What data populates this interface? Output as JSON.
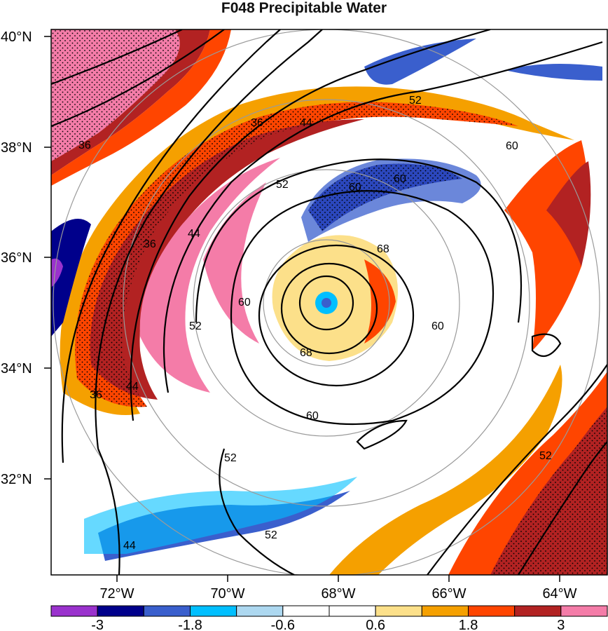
{
  "title": "F048 Precipitable Water",
  "map": {
    "lat_ticks": [
      "40°N",
      "38°N",
      "36°N",
      "34°N",
      "32°N"
    ],
    "lon_ticks": [
      "72°W",
      "70°W",
      "68°W",
      "66°W",
      "64°W"
    ]
  },
  "colorbar": {
    "colors": [
      "#9a32cd",
      "#00008b",
      "#3a5fcd",
      "#00bfff",
      "#add8f0",
      "#ffffff",
      "#ffffff",
      "#fce08a",
      "#f5a000",
      "#ff4500",
      "#b22222",
      "#f47ca8"
    ],
    "labels": [
      "-3",
      "-1.8",
      "-0.6",
      "0.6",
      "1.8",
      "3"
    ]
  },
  "contour_labels": [
    "36",
    "36",
    "36",
    "36",
    "44",
    "44",
    "44",
    "44",
    "52",
    "52",
    "52",
    "52",
    "52",
    "52",
    "60",
    "60",
    "60",
    "60",
    "60",
    "60",
    "68",
    "68"
  ]
}
